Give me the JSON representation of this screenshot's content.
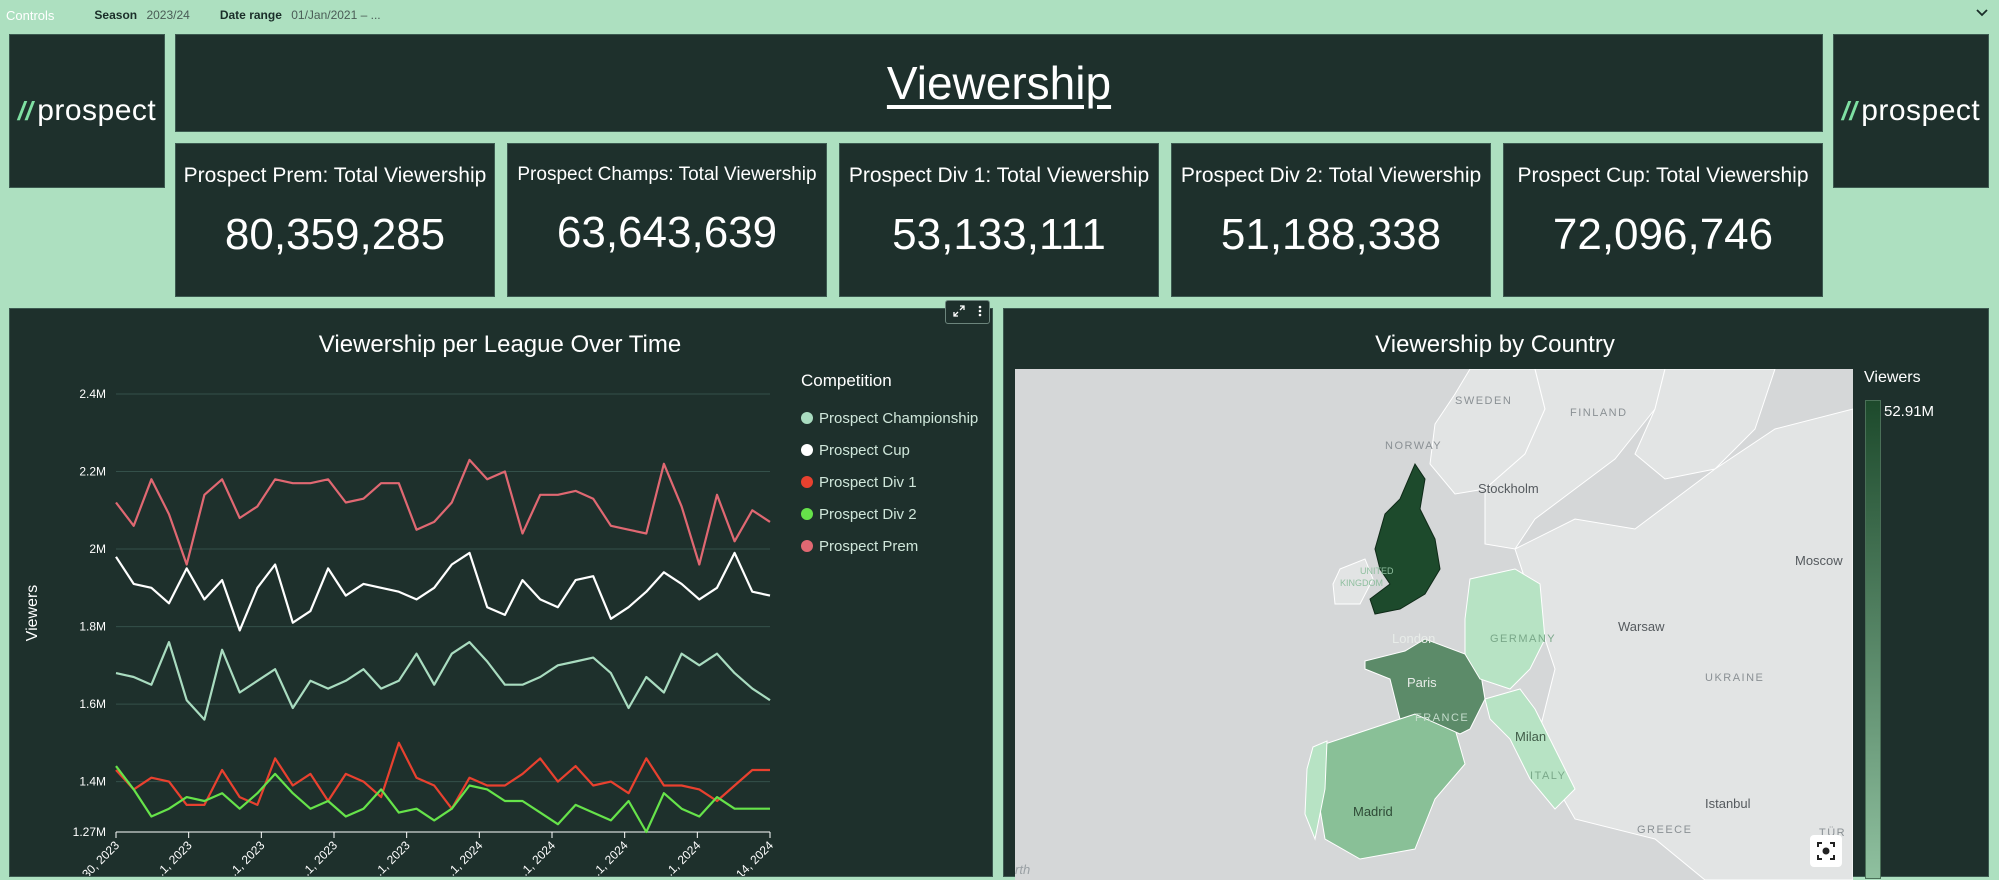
{
  "controls": {
    "title": "Controls",
    "season_label": "Season",
    "season_value": "2023/24",
    "date_label": "Date range",
    "date_value": "01/Jan/2021 – ..."
  },
  "logo": {
    "mark": "//",
    "text": "prospect"
  },
  "header": {
    "title": "Viewership"
  },
  "kpis": [
    {
      "label": "Prospect Prem: Total Viewership",
      "value": "80,359,285"
    },
    {
      "label": "Prospect Champs: Total Viewership",
      "value": "63,643,639"
    },
    {
      "label": "Prospect Div 1: Total Viewership",
      "value": "53,133,111"
    },
    {
      "label": "Prospect Div 2: Total Viewership",
      "value": "51,188,338"
    },
    {
      "label": "Prospect Cup: Total Viewership",
      "value": "72,096,746"
    }
  ],
  "chart_data": {
    "type": "line",
    "title": "Viewership per League Over Time",
    "ylabel": "Viewers",
    "legend_title": "Competition",
    "legend_position": "right",
    "ylim": [
      1270000,
      2400000
    ],
    "y_ticks": [
      "1.27M",
      "1.4M",
      "1.6M",
      "1.8M",
      "2M",
      "2.2M",
      "2.4M"
    ],
    "y_tick_values": [
      1270000,
      1400000,
      1600000,
      1800000,
      2000000,
      2200000,
      2400000
    ],
    "x_tick_labels": [
      "...30, 2023",
      "...1, 2023",
      "...1, 2023",
      "...1, 2023",
      "...1, 2023",
      "...1, 2024",
      "...1, 2024",
      "...1, 2024",
      "...1, 2024",
      "...14, 2024"
    ],
    "grid": true,
    "series": [
      {
        "name": "Prospect Championship",
        "color": "#a9dcc0",
        "values": [
          1680000,
          1670000,
          1650000,
          1760000,
          1610000,
          1560000,
          1740000,
          1630000,
          1660000,
          1690000,
          1590000,
          1660000,
          1640000,
          1660000,
          1690000,
          1640000,
          1660000,
          1730000,
          1650000,
          1730000,
          1760000,
          1710000,
          1650000,
          1650000,
          1670000,
          1700000,
          1710000,
          1720000,
          1680000,
          1590000,
          1670000,
          1630000,
          1730000,
          1700000,
          1730000,
          1680000,
          1640000,
          1610000
        ]
      },
      {
        "name": "Prospect Cup",
        "color": "#ffffff",
        "values": [
          1980000,
          1910000,
          1900000,
          1860000,
          1950000,
          1870000,
          1920000,
          1790000,
          1900000,
          1960000,
          1810000,
          1840000,
          1950000,
          1880000,
          1910000,
          1900000,
          1890000,
          1870000,
          1900000,
          1960000,
          1990000,
          1850000,
          1830000,
          1920000,
          1870000,
          1850000,
          1920000,
          1930000,
          1820000,
          1850000,
          1890000,
          1940000,
          1910000,
          1870000,
          1900000,
          1990000,
          1890000,
          1880000
        ]
      },
      {
        "name": "Prospect Div 1",
        "color": "#e8412f",
        "values": [
          1430000,
          1380000,
          1410000,
          1400000,
          1340000,
          1340000,
          1430000,
          1360000,
          1340000,
          1460000,
          1390000,
          1420000,
          1350000,
          1420000,
          1400000,
          1360000,
          1500000,
          1410000,
          1390000,
          1330000,
          1410000,
          1390000,
          1390000,
          1420000,
          1460000,
          1400000,
          1440000,
          1390000,
          1400000,
          1370000,
          1460000,
          1390000,
          1390000,
          1380000,
          1350000,
          1390000,
          1430000,
          1430000
        ]
      },
      {
        "name": "Prospect Div 2",
        "color": "#66e34a",
        "values": [
          1440000,
          1380000,
          1310000,
          1330000,
          1360000,
          1350000,
          1370000,
          1330000,
          1370000,
          1420000,
          1370000,
          1330000,
          1350000,
          1310000,
          1330000,
          1380000,
          1320000,
          1330000,
          1300000,
          1330000,
          1390000,
          1380000,
          1350000,
          1350000,
          1320000,
          1290000,
          1340000,
          1320000,
          1300000,
          1350000,
          1270000,
          1370000,
          1330000,
          1310000,
          1360000,
          1330000,
          1330000,
          1330000
        ]
      },
      {
        "name": "Prospect Prem",
        "color": "#e06872",
        "values": [
          2120000,
          2060000,
          2180000,
          2090000,
          1960000,
          2140000,
          2180000,
          2080000,
          2110000,
          2180000,
          2170000,
          2170000,
          2180000,
          2120000,
          2130000,
          2170000,
          2170000,
          2050000,
          2070000,
          2120000,
          2230000,
          2180000,
          2200000,
          2040000,
          2140000,
          2140000,
          2150000,
          2130000,
          2060000,
          2050000,
          2040000,
          2220000,
          2110000,
          1960000,
          2140000,
          2020000,
          2100000,
          2070000
        ]
      }
    ]
  },
  "map": {
    "title": "Viewership by Country",
    "legend_title": "Viewers",
    "legend_max": "52.91M",
    "countries": [
      {
        "name": "UNITED KINGDOM",
        "color": "#1d4a2c"
      },
      {
        "name": "FRANCE",
        "color": "#5c8b69"
      },
      {
        "name": "SPAIN",
        "color": "#89c097"
      },
      {
        "name": "GERMANY",
        "color": "#b7e3c4"
      },
      {
        "name": "ITALY",
        "color": "#b7e3c4"
      }
    ],
    "labels": {
      "sweden": "SWEDEN",
      "finland": "FINLAND",
      "norway": "NORWAY",
      "stockholm": "Stockholm",
      "moscow": "Moscow",
      "warsaw": "Warsaw",
      "ukraine": "UKRAINE",
      "london": "London",
      "paris": "Paris",
      "france": "FRANCE",
      "germany": "GERMANY",
      "milan": "Milan",
      "italy": "ITALY",
      "madrid": "Madrid",
      "istanbul": "Istanbul",
      "greece": "GREECE",
      "turkey": "TÜR",
      "uk1": "UNITED",
      "uk2": "KINGDOM",
      "attrib": "rth"
    }
  },
  "icons": {
    "expand": "expand-icon",
    "more": "more-vertical-icon",
    "screenshot": "screenshot-icon",
    "chevron": "chevron-down-icon"
  }
}
